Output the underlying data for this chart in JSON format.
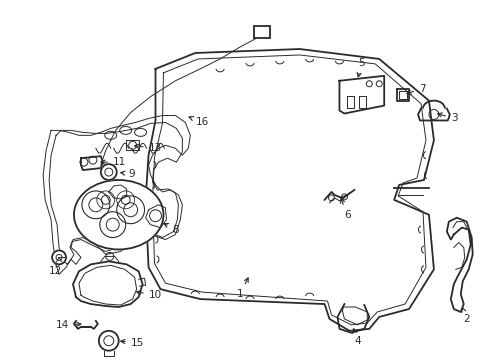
{
  "bg_color": "#ffffff",
  "line_color": "#2a2a2a",
  "fig_width": 4.89,
  "fig_height": 3.6,
  "dpi": 100,
  "label_fs": 7.5,
  "lw_main": 1.3,
  "lw_thin": 0.7
}
